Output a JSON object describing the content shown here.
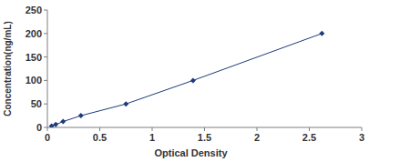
{
  "chart_data": {
    "type": "line",
    "x_label": "Optical Density",
    "y_label": "Concentration(ng/mL)",
    "x": [
      0.04,
      0.08,
      0.15,
      0.32,
      0.75,
      1.39,
      2.62
    ],
    "values": [
      3.12,
      6.25,
      12.5,
      25,
      50,
      100,
      200
    ],
    "xlim": [
      0,
      3
    ],
    "xticks": [
      0,
      0.5,
      1,
      1.5,
      2,
      2.5,
      3
    ],
    "ylim": [
      0,
      250
    ],
    "yticks": [
      0,
      50,
      100,
      150,
      200,
      250
    ],
    "color": "#1f3a7a",
    "marker": "diamond",
    "grid": false
  }
}
